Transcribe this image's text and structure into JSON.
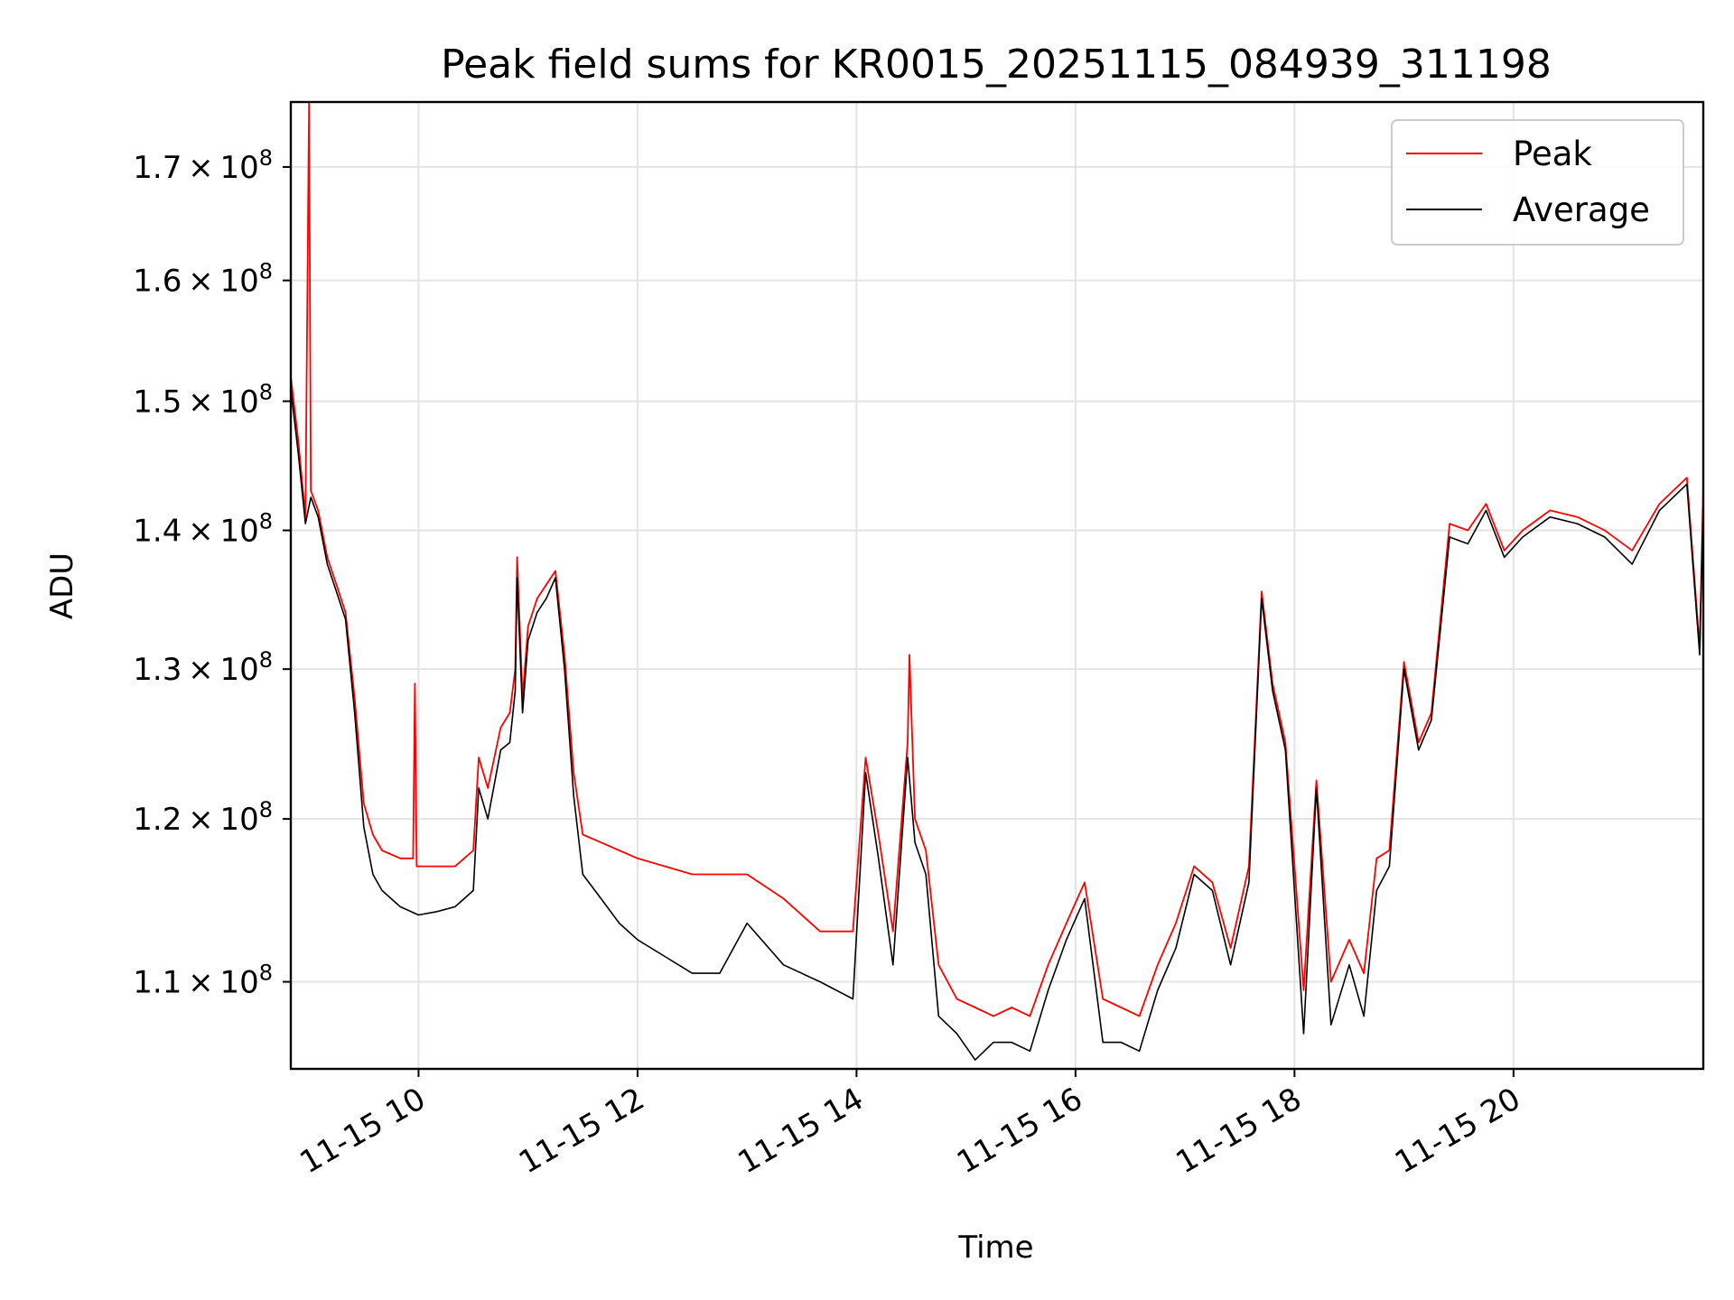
{
  "chart_data": {
    "type": "line",
    "title": "Peak field sums for KR0015_20251115_084939_311198",
    "xlabel": "Time",
    "ylabel": "ADU",
    "x_axis": {
      "kind": "datetime",
      "range": [
        "2025-11-15T08:50",
        "2025-11-15T21:44"
      ],
      "ticks": [
        {
          "value": "2025-11-15T10:00",
          "label": "11-15 10"
        },
        {
          "value": "2025-11-15T12:00",
          "label": "11-15 12"
        },
        {
          "value": "2025-11-15T14:00",
          "label": "11-15 14"
        },
        {
          "value": "2025-11-15T16:00",
          "label": "11-15 16"
        },
        {
          "value": "2025-11-15T18:00",
          "label": "11-15 18"
        },
        {
          "value": "2025-11-15T20:00",
          "label": "11-15 20"
        }
      ]
    },
    "y_axis": {
      "scale": "log",
      "range": [
        105000000,
        176000000
      ],
      "ticks": [
        {
          "value": 110000000,
          "mantissa": "1.1",
          "base": "10",
          "exponent": "8"
        },
        {
          "value": 120000000,
          "mantissa": "1.2",
          "base": "10",
          "exponent": "8"
        },
        {
          "value": 130000000,
          "mantissa": "1.3",
          "base": "10",
          "exponent": "8"
        },
        {
          "value": 140000000,
          "mantissa": "1.4",
          "base": "10",
          "exponent": "8"
        },
        {
          "value": 150000000,
          "mantissa": "1.5",
          "base": "10",
          "exponent": "8"
        },
        {
          "value": 160000000,
          "mantissa": "1.6",
          "base": "10",
          "exponent": "8"
        },
        {
          "value": 170000000,
          "mantissa": "1.7",
          "base": "10",
          "exponent": "8"
        }
      ]
    },
    "grid": true,
    "legend_position": "top-right",
    "series": [
      {
        "name": "Peak",
        "color": "#ff0000",
        "points": [
          [
            "2025-11-15T08:50",
            152000000
          ],
          [
            "2025-11-15T08:54",
            147000000
          ],
          [
            "2025-11-15T08:58",
            141000000
          ],
          [
            "2025-11-15T09:00",
            176000000
          ],
          [
            "2025-11-15T09:01",
            143000000
          ],
          [
            "2025-11-15T09:05",
            141500000
          ],
          [
            "2025-11-15T09:10",
            138000000
          ],
          [
            "2025-11-15T09:15",
            136000000
          ],
          [
            "2025-11-15T09:20",
            134000000
          ],
          [
            "2025-11-15T09:25",
            128000000
          ],
          [
            "2025-11-15T09:30",
            121000000
          ],
          [
            "2025-11-15T09:35",
            119000000
          ],
          [
            "2025-11-15T09:40",
            118000000
          ],
          [
            "2025-11-15T09:50",
            117500000
          ],
          [
            "2025-11-15T09:57",
            117500000
          ],
          [
            "2025-11-15T09:58",
            129000000
          ],
          [
            "2025-11-15T09:59",
            117000000
          ],
          [
            "2025-11-15T10:10",
            117000000
          ],
          [
            "2025-11-15T10:20",
            117000000
          ],
          [
            "2025-11-15T10:30",
            118000000
          ],
          [
            "2025-11-15T10:33",
            124000000
          ],
          [
            "2025-11-15T10:38",
            122000000
          ],
          [
            "2025-11-15T10:45",
            126000000
          ],
          [
            "2025-11-15T10:50",
            127000000
          ],
          [
            "2025-11-15T10:53",
            130000000
          ],
          [
            "2025-11-15T10:54",
            138000000
          ],
          [
            "2025-11-15T10:57",
            128000000
          ],
          [
            "2025-11-15T11:00",
            133000000
          ],
          [
            "2025-11-15T11:05",
            135000000
          ],
          [
            "2025-11-15T11:10",
            136000000
          ],
          [
            "2025-11-15T11:15",
            137000000
          ],
          [
            "2025-11-15T11:20",
            131000000
          ],
          [
            "2025-11-15T11:25",
            123000000
          ],
          [
            "2025-11-15T11:30",
            119000000
          ],
          [
            "2025-11-15T11:40",
            118500000
          ],
          [
            "2025-11-15T11:50",
            118000000
          ],
          [
            "2025-11-15T12:00",
            117500000
          ],
          [
            "2025-11-15T12:15",
            117000000
          ],
          [
            "2025-11-15T12:30",
            116500000
          ],
          [
            "2025-11-15T12:45",
            116500000
          ],
          [
            "2025-11-15T13:00",
            116500000
          ],
          [
            "2025-11-15T13:20",
            115000000
          ],
          [
            "2025-11-15T13:40",
            113000000
          ],
          [
            "2025-11-15T13:58",
            113000000
          ],
          [
            "2025-11-15T14:05",
            124000000
          ],
          [
            "2025-11-15T14:12",
            119000000
          ],
          [
            "2025-11-15T14:20",
            113000000
          ],
          [
            "2025-11-15T14:28",
            125000000
          ],
          [
            "2025-11-15T14:29",
            131000000
          ],
          [
            "2025-11-15T14:32",
            120000000
          ],
          [
            "2025-11-15T14:38",
            118000000
          ],
          [
            "2025-11-15T14:45",
            111000000
          ],
          [
            "2025-11-15T14:55",
            109000000
          ],
          [
            "2025-11-15T15:05",
            108500000
          ],
          [
            "2025-11-15T15:15",
            108000000
          ],
          [
            "2025-11-15T15:25",
            108500000
          ],
          [
            "2025-11-15T15:35",
            108000000
          ],
          [
            "2025-11-15T15:45",
            111000000
          ],
          [
            "2025-11-15T15:55",
            113500000
          ],
          [
            "2025-11-15T16:05",
            116000000
          ],
          [
            "2025-11-15T16:15",
            109000000
          ],
          [
            "2025-11-15T16:25",
            108500000
          ],
          [
            "2025-11-15T16:35",
            108000000
          ],
          [
            "2025-11-15T16:45",
            111000000
          ],
          [
            "2025-11-15T16:55",
            113500000
          ],
          [
            "2025-11-15T17:05",
            117000000
          ],
          [
            "2025-11-15T17:15",
            116000000
          ],
          [
            "2025-11-15T17:25",
            112000000
          ],
          [
            "2025-11-15T17:35",
            117000000
          ],
          [
            "2025-11-15T17:42",
            135500000
          ],
          [
            "2025-11-15T17:48",
            129000000
          ],
          [
            "2025-11-15T17:55",
            125000000
          ],
          [
            "2025-11-15T18:05",
            109500000
          ],
          [
            "2025-11-15T18:12",
            122500000
          ],
          [
            "2025-11-15T18:20",
            110000000
          ],
          [
            "2025-11-15T18:30",
            112500000
          ],
          [
            "2025-11-15T18:38",
            110500000
          ],
          [
            "2025-11-15T18:45",
            117500000
          ],
          [
            "2025-11-15T18:52",
            118000000
          ],
          [
            "2025-11-15T19:00",
            130500000
          ],
          [
            "2025-11-15T19:08",
            125000000
          ],
          [
            "2025-11-15T19:15",
            127000000
          ],
          [
            "2025-11-15T19:25",
            140500000
          ],
          [
            "2025-11-15T19:35",
            140000000
          ],
          [
            "2025-11-15T19:45",
            142000000
          ],
          [
            "2025-11-15T19:55",
            138500000
          ],
          [
            "2025-11-15T20:05",
            140000000
          ],
          [
            "2025-11-15T20:20",
            141500000
          ],
          [
            "2025-11-15T20:35",
            141000000
          ],
          [
            "2025-11-15T20:50",
            140000000
          ],
          [
            "2025-11-15T21:05",
            138500000
          ],
          [
            "2025-11-15T21:20",
            142000000
          ],
          [
            "2025-11-15T21:35",
            144000000
          ],
          [
            "2025-11-15T21:42",
            131500000
          ],
          [
            "2025-11-15T21:44",
            143500000
          ]
        ]
      },
      {
        "name": "Average",
        "color": "#000000",
        "points": [
          [
            "2025-11-15T08:50",
            151000000
          ],
          [
            "2025-11-15T08:54",
            146000000
          ],
          [
            "2025-11-15T08:58",
            140500000
          ],
          [
            "2025-11-15T09:01",
            142500000
          ],
          [
            "2025-11-15T09:05",
            141000000
          ],
          [
            "2025-11-15T09:10",
            137500000
          ],
          [
            "2025-11-15T09:15",
            135500000
          ],
          [
            "2025-11-15T09:20",
            133500000
          ],
          [
            "2025-11-15T09:25",
            127000000
          ],
          [
            "2025-11-15T09:30",
            119500000
          ],
          [
            "2025-11-15T09:35",
            116500000
          ],
          [
            "2025-11-15T09:40",
            115500000
          ],
          [
            "2025-11-15T09:50",
            114500000
          ],
          [
            "2025-11-15T10:00",
            114000000
          ],
          [
            "2025-11-15T10:10",
            114200000
          ],
          [
            "2025-11-15T10:20",
            114500000
          ],
          [
            "2025-11-15T10:30",
            115500000
          ],
          [
            "2025-11-15T10:33",
            122000000
          ],
          [
            "2025-11-15T10:38",
            120000000
          ],
          [
            "2025-11-15T10:45",
            124500000
          ],
          [
            "2025-11-15T10:50",
            125000000
          ],
          [
            "2025-11-15T10:53",
            128500000
          ],
          [
            "2025-11-15T10:54",
            136500000
          ],
          [
            "2025-11-15T10:57",
            127000000
          ],
          [
            "2025-11-15T11:00",
            132000000
          ],
          [
            "2025-11-15T11:05",
            134000000
          ],
          [
            "2025-11-15T11:10",
            135000000
          ],
          [
            "2025-11-15T11:15",
            136500000
          ],
          [
            "2025-11-15T11:20",
            130000000
          ],
          [
            "2025-11-15T11:25",
            121500000
          ],
          [
            "2025-11-15T11:30",
            116500000
          ],
          [
            "2025-11-15T11:40",
            115000000
          ],
          [
            "2025-11-15T11:50",
            113500000
          ],
          [
            "2025-11-15T12:00",
            112500000
          ],
          [
            "2025-11-15T12:15",
            111500000
          ],
          [
            "2025-11-15T12:30",
            110500000
          ],
          [
            "2025-11-15T12:45",
            110500000
          ],
          [
            "2025-11-15T13:00",
            113500000
          ],
          [
            "2025-11-15T13:20",
            111000000
          ],
          [
            "2025-11-15T13:40",
            110000000
          ],
          [
            "2025-11-15T13:58",
            109000000
          ],
          [
            "2025-11-15T14:05",
            123000000
          ],
          [
            "2025-11-15T14:12",
            117500000
          ],
          [
            "2025-11-15T14:20",
            111000000
          ],
          [
            "2025-11-15T14:28",
            124000000
          ],
          [
            "2025-11-15T14:32",
            118500000
          ],
          [
            "2025-11-15T14:38",
            116500000
          ],
          [
            "2025-11-15T14:45",
            108000000
          ],
          [
            "2025-11-15T14:55",
            107000000
          ],
          [
            "2025-11-15T15:05",
            105500000
          ],
          [
            "2025-11-15T15:15",
            106500000
          ],
          [
            "2025-11-15T15:25",
            106500000
          ],
          [
            "2025-11-15T15:35",
            106000000
          ],
          [
            "2025-11-15T15:45",
            109500000
          ],
          [
            "2025-11-15T15:55",
            112500000
          ],
          [
            "2025-11-15T16:05",
            115000000
          ],
          [
            "2025-11-15T16:15",
            106500000
          ],
          [
            "2025-11-15T16:25",
            106500000
          ],
          [
            "2025-11-15T16:35",
            106000000
          ],
          [
            "2025-11-15T16:45",
            109500000
          ],
          [
            "2025-11-15T16:55",
            112000000
          ],
          [
            "2025-11-15T17:05",
            116500000
          ],
          [
            "2025-11-15T17:15",
            115500000
          ],
          [
            "2025-11-15T17:25",
            111000000
          ],
          [
            "2025-11-15T17:35",
            116000000
          ],
          [
            "2025-11-15T17:42",
            135000000
          ],
          [
            "2025-11-15T17:48",
            128500000
          ],
          [
            "2025-11-15T17:55",
            124500000
          ],
          [
            "2025-11-15T18:05",
            107000000
          ],
          [
            "2025-11-15T18:12",
            122000000
          ],
          [
            "2025-11-15T18:20",
            107500000
          ],
          [
            "2025-11-15T18:30",
            111000000
          ],
          [
            "2025-11-15T18:38",
            108000000
          ],
          [
            "2025-11-15T18:45",
            115500000
          ],
          [
            "2025-11-15T18:52",
            117000000
          ],
          [
            "2025-11-15T19:00",
            130000000
          ],
          [
            "2025-11-15T19:08",
            124500000
          ],
          [
            "2025-11-15T19:15",
            126500000
          ],
          [
            "2025-11-15T19:25",
            139500000
          ],
          [
            "2025-11-15T19:35",
            139000000
          ],
          [
            "2025-11-15T19:45",
            141500000
          ],
          [
            "2025-11-15T19:55",
            138000000
          ],
          [
            "2025-11-15T20:05",
            139500000
          ],
          [
            "2025-11-15T20:20",
            141000000
          ],
          [
            "2025-11-15T20:35",
            140500000
          ],
          [
            "2025-11-15T20:50",
            139500000
          ],
          [
            "2025-11-15T21:05",
            137500000
          ],
          [
            "2025-11-15T21:20",
            141500000
          ],
          [
            "2025-11-15T21:35",
            143500000
          ],
          [
            "2025-11-15T21:42",
            131000000
          ],
          [
            "2025-11-15T21:44",
            142500000
          ]
        ]
      }
    ]
  }
}
